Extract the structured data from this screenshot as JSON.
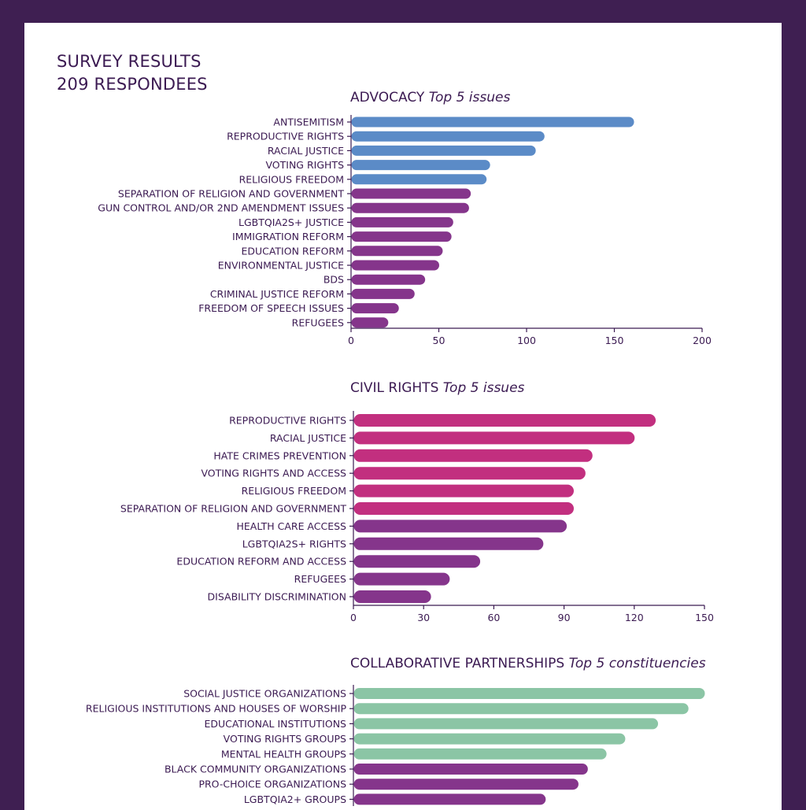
{
  "header": {
    "title": "SURVEY RESULTS",
    "subtitle": "209 RESPONDEES"
  },
  "colors": {
    "background_frame": "#3f1f52",
    "text": "#3b1a52",
    "top5_blue": "#5b8bc7",
    "top5_magenta": "#c22f7f",
    "top5_green": "#8bc5a5",
    "other_purple": "#85358b"
  },
  "chart_data": [
    {
      "type": "bar",
      "orientation": "horizontal",
      "title": "ADVOCACY",
      "title_emphasis": "Top 5 issues",
      "categories": [
        "ANTISEMITISM",
        "REPRODUCTIVE RIGHTS",
        "RACIAL JUSTICE",
        "VOTING RIGHTS",
        "RELIGIOUS FREEDOM",
        "SEPARATION OF RELIGION AND GOVERNMENT",
        "GUN CONTROL AND/OR 2ND AMENDMENT ISSUES",
        "LGBTQIA2S+ JUSTICE",
        "IMMIGRATION REFORM",
        "EDUCATION REFORM",
        "ENVIRONMENTAL JUSTICE",
        "BDS",
        "CRIMINAL JUSTICE REFORM",
        "FREEDOM OF SPEECH ISSUES",
        "REFUGEES"
      ],
      "values": [
        161,
        110,
        105,
        79,
        77,
        68,
        67,
        58,
        57,
        52,
        50,
        42,
        36,
        27,
        21
      ],
      "top_n": 5,
      "highlight_color": "#5b8bc7",
      "other_color": "#85358b",
      "xlim": [
        0,
        200
      ],
      "xticks": [
        0,
        50,
        100,
        150,
        200
      ],
      "xlabel": "",
      "ylabel": "",
      "grid": false
    },
    {
      "type": "bar",
      "orientation": "horizontal",
      "title": "CIVIL RIGHTS",
      "title_emphasis": "Top 5 issues",
      "categories": [
        "REPRODUCTIVE RIGHTS",
        "RACIAL JUSTICE",
        "HATE CRIMES PREVENTION",
        "VOTING RIGHTS AND ACCESS",
        "RELIGIOUS FREEDOM",
        "SEPARATION OF RELIGION AND GOVERNMENT",
        "HEALTH CARE ACCESS",
        "LGBTQIA2S+ RIGHTS",
        "EDUCATION REFORM AND ACCESS",
        "REFUGEES",
        "DISABILITY DISCRIMINATION"
      ],
      "values": [
        129,
        120,
        102,
        99,
        94,
        94,
        91,
        81,
        54,
        41,
        33
      ],
      "top_n": 6,
      "highlight_color": "#c22f7f",
      "other_color": "#85358b",
      "xlim": [
        0,
        150
      ],
      "xticks": [
        0,
        30,
        60,
        90,
        120,
        150
      ],
      "xlabel": "",
      "ylabel": "",
      "grid": false
    },
    {
      "type": "bar",
      "orientation": "horizontal",
      "title": "COLLABORATIVE PARTNERSHIPS",
      "title_emphasis": "Top 5 constituencies",
      "categories": [
        "SOCIAL JUSTICE ORGANIZATIONS",
        "RELIGIOUS INSTITUTIONS AND HOUSES OF WORSHIP",
        "EDUCATIONAL INSTITUTIONS",
        "VOTING RIGHTS GROUPS",
        "MENTAL HEALTH GROUPS",
        "BLACK COMMUNITY ORGANIZATIONS",
        "PRO-CHOICE ORGANIZATIONS",
        "LGBTQIA2+ GROUPS"
      ],
      "values": [
        150,
        143,
        130,
        116,
        108,
        100,
        96,
        82
      ],
      "top_n": 5,
      "highlight_color": "#8bc5a5",
      "other_color": "#85358b",
      "xlim": [
        0,
        150
      ],
      "xlabel": "",
      "ylabel": "",
      "grid": false
    }
  ]
}
